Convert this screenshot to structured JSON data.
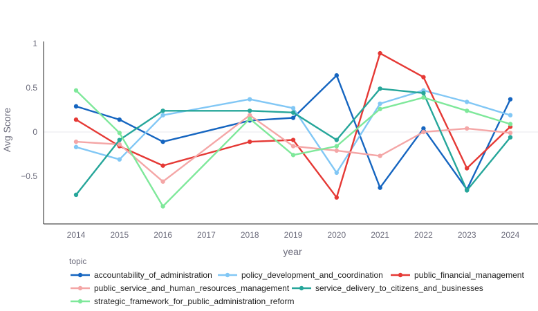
{
  "chart_data": {
    "type": "line",
    "xlabel": "year",
    "ylabel": "Avg Score",
    "legend_title": "topic",
    "legend_position": "bottom",
    "grid": false,
    "x": [
      "2014",
      "2015",
      "2016",
      "2017",
      "2018",
      "2019",
      "2020",
      "2021",
      "2022",
      "2023",
      "2024"
    ],
    "xlim": [
      2013.25,
      2024.6
    ],
    "ylim": [
      -1.03,
      1.03
    ],
    "y_ticks": [
      {
        "value": 1,
        "label": "1"
      },
      {
        "value": 0.5,
        "label": "0.5"
      },
      {
        "value": 0,
        "label": "0"
      },
      {
        "value": -0.5,
        "label": "−0.5"
      }
    ],
    "series": [
      {
        "name": "accountability_of_administration",
        "color": "#1565c0",
        "points": [
          [
            2014,
            0.29
          ],
          [
            2015,
            0.14
          ],
          [
            2016,
            -0.11
          ],
          [
            2018,
            0.13
          ],
          [
            2019,
            0.16
          ],
          [
            2020,
            0.64
          ],
          [
            2021,
            -0.63
          ],
          [
            2022,
            0.04
          ],
          [
            2023,
            -0.65
          ],
          [
            2024,
            0.37
          ]
        ]
      },
      {
        "name": "policy_development_and_coordination",
        "color": "#81c7f5",
        "points": [
          [
            2014,
            -0.17
          ],
          [
            2015,
            -0.31
          ],
          [
            2016,
            0.19
          ],
          [
            2018,
            0.37
          ],
          [
            2019,
            0.27
          ],
          [
            2020,
            -0.46
          ],
          [
            2021,
            0.32
          ],
          [
            2022,
            0.47
          ],
          [
            2023,
            0.34
          ],
          [
            2024,
            0.19
          ]
        ]
      },
      {
        "name": "public_financial_management",
        "color": "#e53935",
        "points": [
          [
            2014,
            0.14
          ],
          [
            2015,
            -0.16
          ],
          [
            2016,
            -0.38
          ],
          [
            2018,
            -0.11
          ],
          [
            2019,
            -0.09
          ],
          [
            2020,
            -0.74
          ],
          [
            2021,
            0.89
          ],
          [
            2022,
            0.62
          ],
          [
            2023,
            -0.41
          ],
          [
            2024,
            0.06
          ]
        ]
      },
      {
        "name": "public_service_and_human_resources_management",
        "color": "#f4a6a6",
        "points": [
          [
            2014,
            -0.11
          ],
          [
            2015,
            -0.14
          ],
          [
            2016,
            -0.56
          ],
          [
            2018,
            0.19
          ],
          [
            2019,
            -0.16
          ],
          [
            2020,
            -0.21
          ],
          [
            2021,
            -0.27
          ],
          [
            2022,
            -0.0
          ],
          [
            2023,
            0.04
          ],
          [
            2024,
            -0.01
          ]
        ]
      },
      {
        "name": "service_delivery_to_citizens_and_businesses",
        "color": "#26a69a",
        "points": [
          [
            2014,
            -0.71
          ],
          [
            2015,
            -0.09
          ],
          [
            2016,
            0.24
          ],
          [
            2018,
            0.24
          ],
          [
            2019,
            0.22
          ],
          [
            2020,
            -0.09
          ],
          [
            2021,
            0.49
          ],
          [
            2022,
            0.44
          ],
          [
            2023,
            -0.66
          ],
          [
            2024,
            -0.06
          ]
        ]
      },
      {
        "name": "strategic_framework_for_public_administration_reform",
        "color": "#7ee89a",
        "points": [
          [
            2014,
            0.47
          ],
          [
            2015,
            -0.01
          ],
          [
            2016,
            -0.84
          ],
          [
            2018,
            0.15
          ],
          [
            2019,
            -0.26
          ],
          [
            2020,
            -0.16
          ],
          [
            2021,
            0.26
          ],
          [
            2022,
            0.39
          ],
          [
            2023,
            0.24
          ],
          [
            2024,
            0.09
          ]
        ]
      }
    ]
  }
}
